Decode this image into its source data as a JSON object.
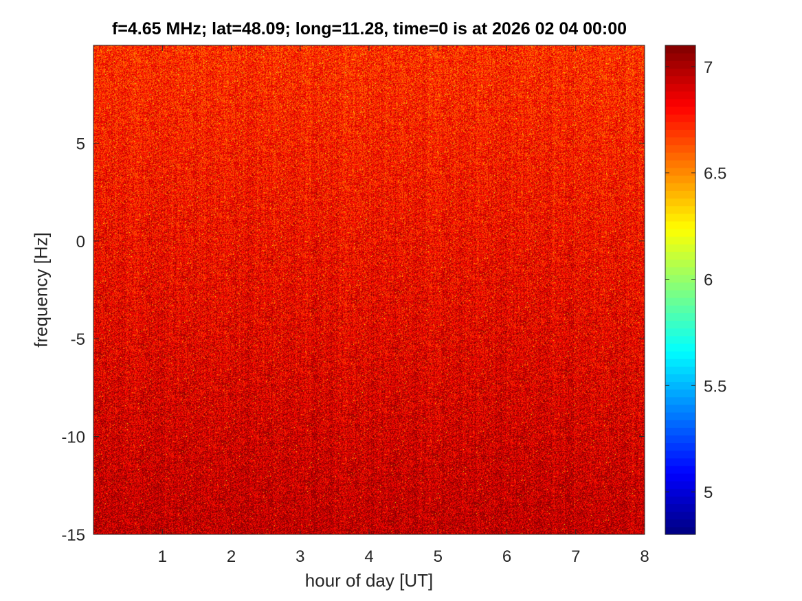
{
  "chart_data": {
    "type": "heatmap",
    "title": "f=4.65 MHz;  lat=48.09; long=11.28, time=0 is at 2026 02 04 00:00",
    "xlabel": "hour of day [UT]",
    "ylabel": "frequency [Hz]",
    "xlim": [
      0,
      8
    ],
    "ylim": [
      -15,
      10
    ],
    "xticks": [
      1,
      2,
      3,
      4,
      5,
      6,
      7,
      8
    ],
    "xtick_labels": [
      "1",
      "2",
      "3",
      "4",
      "5",
      "6",
      "7",
      "8"
    ],
    "yticks": [
      -15,
      -10,
      -5,
      0,
      5
    ],
    "ytick_labels": [
      "-15",
      "-10",
      "-5",
      "0",
      "5"
    ],
    "colorbar": {
      "colormap": "jet",
      "clim": [
        4.8,
        7.1
      ],
      "ticks": [
        5,
        5.5,
        6,
        6.5,
        7
      ],
      "tick_labels": [
        "5",
        "5.5",
        "6",
        "6.5",
        "7"
      ]
    },
    "z_range": [
      4.8,
      7.1
    ],
    "typical_value": 6.9,
    "grid": false,
    "legend": "none"
  }
}
